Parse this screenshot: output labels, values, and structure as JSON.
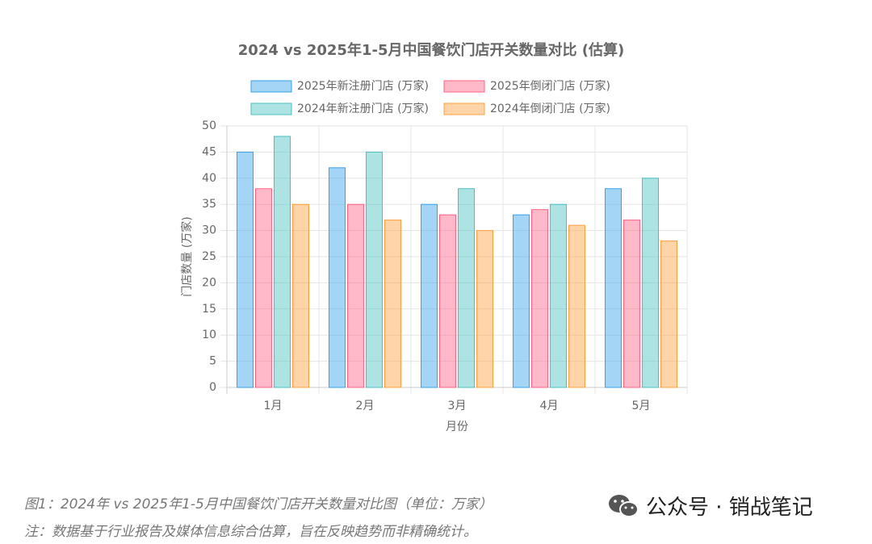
{
  "chart_data": {
    "type": "bar",
    "title": "2024 vs 2025年1-5月中国餐饮门店开关数量对比 (估算)",
    "x_label": "月份",
    "y_label": "门店数量 (万家)",
    "categories": [
      "1月",
      "2月",
      "3月",
      "4月",
      "5月"
    ],
    "series": [
      {
        "name": "2025年新注册门店 (万家)",
        "color": "#36a2eb",
        "values": [
          45,
          42,
          35,
          33,
          38
        ]
      },
      {
        "name": "2025年倒闭门店 (万家)",
        "color": "#ff6384",
        "values": [
          38,
          35,
          33,
          34,
          32
        ]
      },
      {
        "name": "2024年新注册门店 (万家)",
        "color": "#4bc0c0",
        "values": [
          48,
          45,
          38,
          35,
          40
        ]
      },
      {
        "name": "2024年倒闭门店 (万家)",
        "color": "#ff9f40",
        "values": [
          35,
          32,
          30,
          31,
          28
        ]
      }
    ],
    "ylim": [
      0,
      50
    ],
    "yticks": [
      0,
      5,
      10,
      15,
      20,
      25,
      30,
      35,
      40,
      45,
      50
    ],
    "grid": true,
    "legend": "top"
  },
  "caption": "图1：2024年 vs 2025年1-5月中国餐饮门店开关数量对比图（单位：万家）",
  "note": "注：数据基于行业报告及媒体信息综合估算，旨在反映趋势而非精确统计。",
  "watermark": "公众号 · 销战笔记"
}
